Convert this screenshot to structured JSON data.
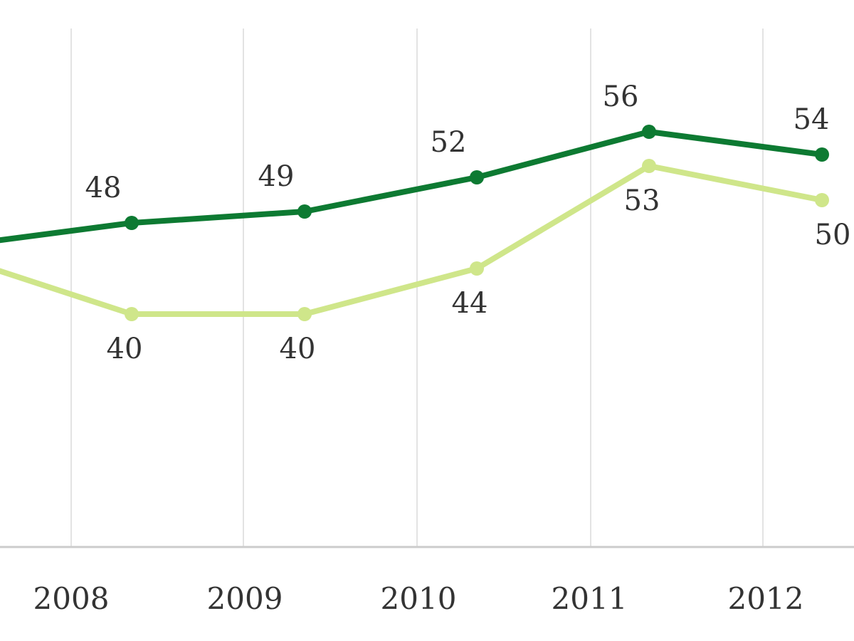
{
  "chart_data": {
    "type": "line",
    "title": "",
    "xlabel": "",
    "ylabel": "",
    "x": [
      "",
      "2008",
      "2009",
      "2010",
      "2011",
      "2012"
    ],
    "ylim": [
      0,
      80
    ],
    "grid": {
      "vertical": true,
      "horizontal": false
    },
    "series": [
      {
        "color": "#0d7a32",
        "values": [
          46,
          48,
          49,
          52,
          56,
          54
        ],
        "labels": [
          "",
          "48",
          "49",
          "52",
          "56",
          "54"
        ]
      },
      {
        "color": "#cfe68a",
        "values": [
          45,
          40,
          40,
          44,
          53,
          50
        ],
        "labels": [
          "",
          "40",
          "40",
          "44",
          "53",
          "50"
        ]
      }
    ]
  }
}
